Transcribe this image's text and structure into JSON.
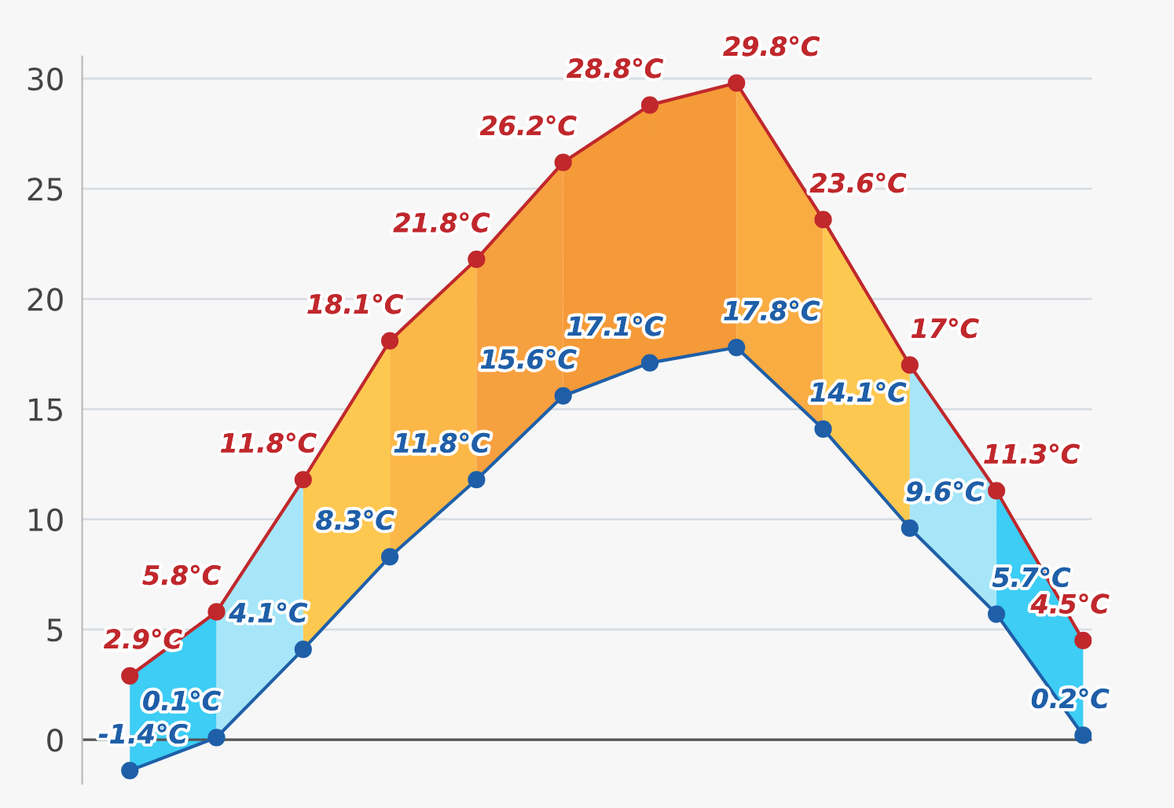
{
  "chart_data": {
    "type": "line",
    "categories": [
      null,
      null,
      null,
      null,
      null,
      null,
      null,
      null,
      null,
      null,
      null,
      null
    ],
    "series": [
      {
        "color": "#c0282c",
        "values": [
          2.9,
          5.8,
          11.8,
          18.1,
          21.8,
          26.2,
          28.8,
          29.8,
          23.6,
          17,
          11.3,
          4.5
        ],
        "value_labels": [
          "2.9°C",
          "5.8°C",
          "11.8°C",
          "18.1°C",
          "21.8°C",
          "26.2°C",
          "28.8°C",
          "29.8°C",
          "23.6°C",
          "17°C",
          "11.3°C",
          "4.5°C"
        ]
      },
      {
        "color": "#1f5fa8",
        "values": [
          -1.4,
          0.1,
          4.1,
          8.3,
          11.8,
          15.6,
          17.1,
          17.8,
          14.1,
          9.6,
          5.7,
          0.2
        ],
        "value_labels": [
          "-1.4°C",
          "0.1°C",
          "4.1°C",
          "8.3°C",
          "11.8°C",
          "15.6°C",
          "17.1°C",
          "17.8°C",
          "14.1°C",
          "9.6°C",
          "5.7°C",
          "0.2°C"
        ]
      }
    ],
    "colors": [
      "#3dcdf5",
      "#a6e6f8",
      "#fdc850",
      "#fbb848",
      "#f7a040",
      "#f59a38",
      "#f59a38",
      "#f9ac42",
      "#fdc850",
      "#a6e6f8",
      "#3dcdf5"
    ],
    "ylim": [
      -2,
      31
    ],
    "yticks": [
      0,
      5,
      10,
      15,
      20,
      25,
      30
    ],
    "grid": "y",
    "tick_labels": "y",
    "marker": "circle",
    "line_style": "solid",
    "ref_lines": [
      {
        "axis": "y",
        "value": 0,
        "color": "#555555"
      }
    ]
  }
}
